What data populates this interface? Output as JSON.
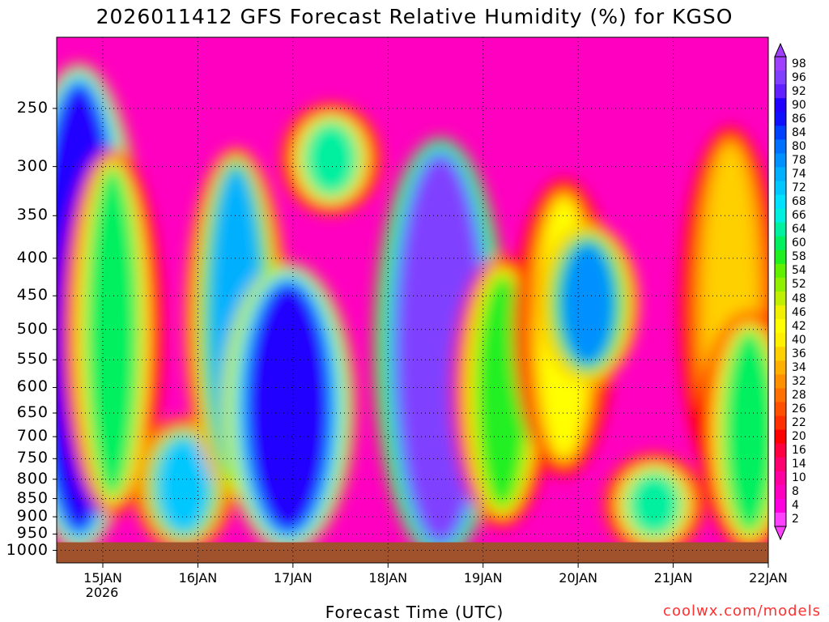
{
  "title": "2026011412 GFS Forecast Relative Humidity (%) for KGSO",
  "xlabel": "Forecast Time (UTC)",
  "credit": "coolwx.com/models",
  "year_label": "2026",
  "chart_data": {
    "type": "heatmap",
    "title": "2026011412 GFS Forecast Relative Humidity (%) for KGSO",
    "xlabel": "Forecast Time (UTC)",
    "ylabel": "",
    "x_ticks": [
      "15JAN",
      "16JAN",
      "17JAN",
      "18JAN",
      "19JAN",
      "20JAN",
      "21JAN",
      "22JAN"
    ],
    "y_ticks": [
      250,
      300,
      350,
      400,
      450,
      500,
      550,
      600,
      650,
      700,
      750,
      800,
      850,
      900,
      950,
      1000
    ],
    "ylim": [
      1000,
      200
    ],
    "y_scale": "log",
    "grid": true,
    "colorbar": {
      "placement": "right",
      "labels": [
        98,
        96,
        92,
        90,
        86,
        84,
        80,
        78,
        74,
        72,
        68,
        66,
        64,
        60,
        58,
        54,
        52,
        48,
        46,
        42,
        40,
        36,
        34,
        32,
        28,
        26,
        22,
        20,
        16,
        14,
        10,
        8,
        4,
        2
      ],
      "colors": [
        "#a040ff",
        "#8040ff",
        "#6020ff",
        "#2000ff",
        "#1010ff",
        "#0040ff",
        "#0070ff",
        "#0090ff",
        "#00b0ff",
        "#00c8ff",
        "#00e0ff",
        "#00f0e0",
        "#00f0a0",
        "#00f060",
        "#20f020",
        "#60f000",
        "#90f000",
        "#c0f000",
        "#f0f000",
        "#ffff00",
        "#fff000",
        "#ffd000",
        "#ffb000",
        "#ff9000",
        "#ff7000",
        "#ff5000",
        "#ff3000",
        "#ff0000",
        "#ff0040",
        "#ff0070",
        "#ff00a0",
        "#ff00c0",
        "#ff00e0",
        "#ff40ff"
      ]
    },
    "humidity_regions": [
      {
        "x_day": 14.75,
        "p_top": 230,
        "p_bottom": 950,
        "rh": 88
      },
      {
        "x_day": 15.1,
        "p_top": 300,
        "p_bottom": 850,
        "rh": 60
      },
      {
        "x_day": 15.85,
        "p_top": 700,
        "p_bottom": 950,
        "rh": 72
      },
      {
        "x_day": 16.4,
        "p_top": 300,
        "p_bottom": 800,
        "rh": 74
      },
      {
        "x_day": 16.95,
        "p_top": 430,
        "p_bottom": 950,
        "rh": 88
      },
      {
        "x_day": 17.4,
        "p_top": 260,
        "p_bottom": 330,
        "rh": 64
      },
      {
        "x_day": 18.55,
        "p_top": 290,
        "p_bottom": 975,
        "rh": 94
      },
      {
        "x_day": 19.2,
        "p_top": 420,
        "p_bottom": 880,
        "rh": 58
      },
      {
        "x_day": 19.85,
        "p_top": 330,
        "p_bottom": 750,
        "rh": 42
      },
      {
        "x_day": 20.1,
        "p_top": 380,
        "p_bottom": 560,
        "rh": 76
      },
      {
        "x_day": 20.8,
        "p_top": 780,
        "p_bottom": 960,
        "rh": 64
      },
      {
        "x_day": 21.6,
        "p_top": 280,
        "p_bottom": 800,
        "rh": 36
      },
      {
        "x_day": 21.8,
        "p_top": 500,
        "p_bottom": 950,
        "rh": 60
      }
    ],
    "background_rh": 8,
    "surface_pressure": 975
  }
}
